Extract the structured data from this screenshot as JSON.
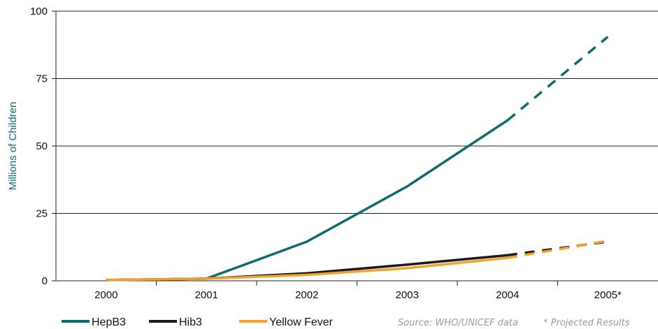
{
  "chart_data": {
    "type": "line",
    "categories": [
      "2000",
      "2001",
      "2002",
      "2003",
      "2004",
      "2005*"
    ],
    "ylabel": "Millions of Children",
    "ylim": [
      0,
      100
    ],
    "yticks": [
      0,
      25,
      50,
      75,
      100
    ],
    "grid": "horizontal",
    "legend_position": "bottom-left",
    "projected_from": "2004",
    "series": [
      {
        "name": "HepB3",
        "color": "#0e6b6b",
        "values": [
          0.3,
          0.8,
          14.5,
          35,
          59.5,
          90.5
        ]
      },
      {
        "name": "Hib3",
        "color": "#1b1b1b",
        "values": [
          0.3,
          0.8,
          2.8,
          6,
          9.5,
          14.5
        ]
      },
      {
        "name": "Yellow Fever",
        "color": "#f2a12e",
        "values": [
          0.3,
          0.8,
          2.2,
          4.7,
          8.5,
          14.8
        ]
      }
    ],
    "source": "Source: WHO/UNICEF data",
    "footnote": "* Projected Results"
  },
  "colors": {
    "axis_title": "#0e6b6b",
    "source_text": "#9a9a9a",
    "grid": "#222222"
  }
}
